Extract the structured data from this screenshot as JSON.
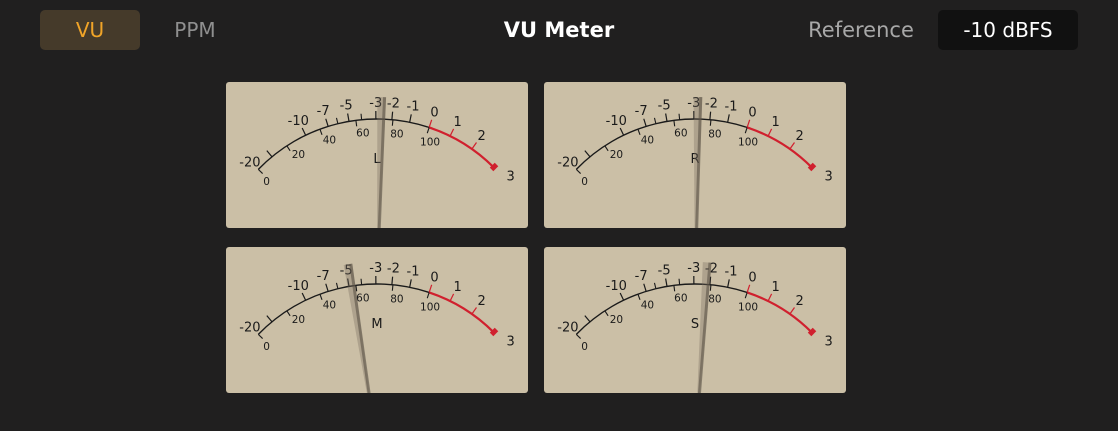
{
  "header": {
    "tabs": [
      {
        "label": "VU",
        "active": true
      },
      {
        "label": "PPM",
        "active": false
      }
    ],
    "title": "VU Meter",
    "reference_label": "Reference",
    "reference_value": "-10 dBFS"
  },
  "scale": {
    "db_labels": [
      "-20",
      "-10",
      "-7",
      "-5",
      "-3",
      "-2",
      "-1",
      "0",
      "1",
      "2",
      "3"
    ],
    "minor_db": [
      -6,
      -4
    ],
    "percent_labels": [
      "0",
      "20",
      "40",
      "60",
      "80",
      "100"
    ],
    "red_from_db": 0
  },
  "colors": {
    "panel": "#cbbfa6",
    "scale": "#1a1a1a",
    "red": "#d0202e",
    "accent": "#f0a428"
  },
  "meters": [
    {
      "channel": "L",
      "needle_db": -2.5
    },
    {
      "channel": "R",
      "needle_db": -2.6
    },
    {
      "channel": "M",
      "needle_db": -4.6
    },
    {
      "channel": "S",
      "needle_db": -2.1
    }
  ]
}
